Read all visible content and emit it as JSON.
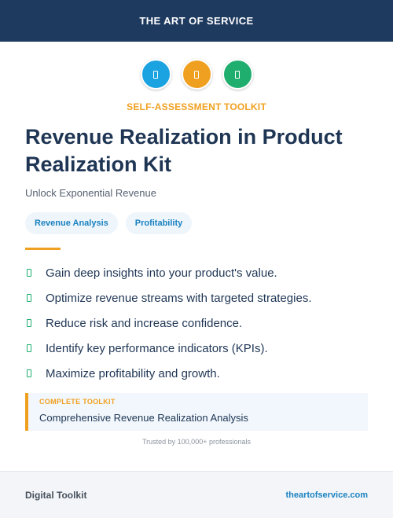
{
  "header": {
    "brand": "THE ART OF SERVICE"
  },
  "icons": [
    {
      "name": "blue-badge-icon",
      "color": "#1aa3e0"
    },
    {
      "name": "orange-badge-icon",
      "color": "#f0a020"
    },
    {
      "name": "green-badge-icon",
      "color": "#1fae6e"
    }
  ],
  "kicker": "SELF-ASSESSMENT TOOLKIT",
  "title": "Revenue Realization in Product Realization Kit",
  "subtitle": "Unlock Exponential Revenue",
  "tags": [
    "Revenue Analysis",
    "Profitability"
  ],
  "features": [
    "Gain deep insights into your product's value.",
    "Optimize revenue streams with targeted strategies.",
    "Reduce risk and increase confidence.",
    "Identify key performance indicators (KPIs).",
    "Maximize profitability and growth."
  ],
  "callout": {
    "label": "COMPLETE TOOLKIT",
    "text": "Comprehensive Revenue Realization Analysis"
  },
  "trusted": "Trusted by 100,000+ professionals",
  "footer": {
    "left": "Digital Toolkit",
    "right": "theartofservice.com"
  },
  "colors": {
    "header_bg": "#1e3a5f",
    "accent_orange": "#f0a020",
    "accent_blue": "#1a82c0",
    "check_green": "#1fae6e"
  }
}
